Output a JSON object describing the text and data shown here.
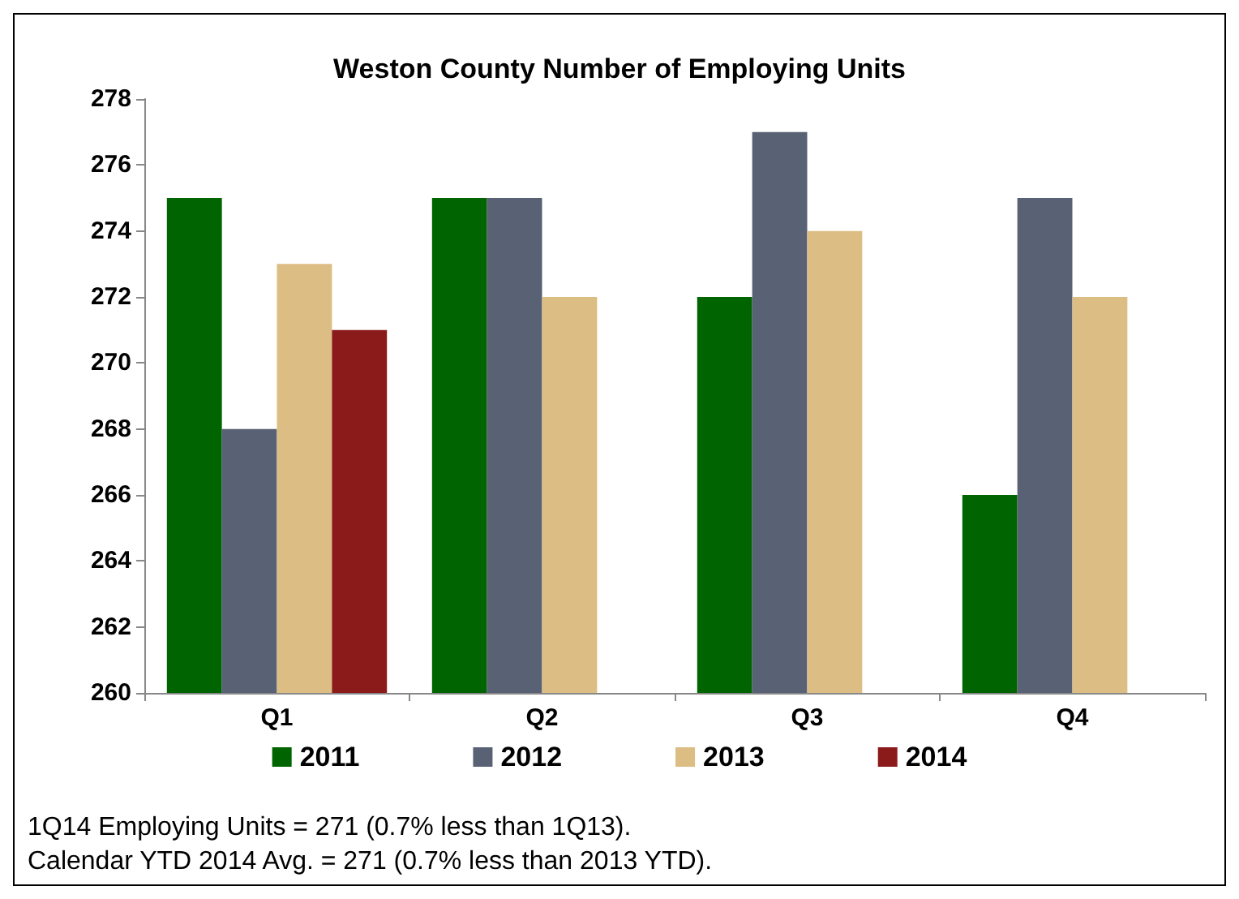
{
  "chart_data": {
    "type": "bar",
    "title": "Weston County Number of Employing Units",
    "categories": [
      "Q1",
      "Q2",
      "Q3",
      "Q4"
    ],
    "series": [
      {
        "name": "2011",
        "color": "#006400",
        "values": [
          275,
          275,
          272,
          266
        ]
      },
      {
        "name": "2012",
        "color": "#596275",
        "values": [
          268,
          275,
          277,
          275
        ]
      },
      {
        "name": "2013",
        "color": "#dcbd84",
        "values": [
          273,
          272,
          274,
          272
        ]
      },
      {
        "name": "2014",
        "color": "#8b1a1a",
        "values": [
          271,
          null,
          null,
          null
        ]
      }
    ],
    "ylim": [
      260,
      278
    ],
    "yticks": [
      260,
      262,
      264,
      266,
      268,
      270,
      272,
      274,
      276,
      278
    ],
    "grid": false,
    "legend": "bottom",
    "annotations": [
      "1Q14 Employing Units = 271 (0.7% less than 1Q13).",
      "Calendar YTD 2014 Avg. = 271 (0.7% less than 2013 YTD)."
    ]
  }
}
